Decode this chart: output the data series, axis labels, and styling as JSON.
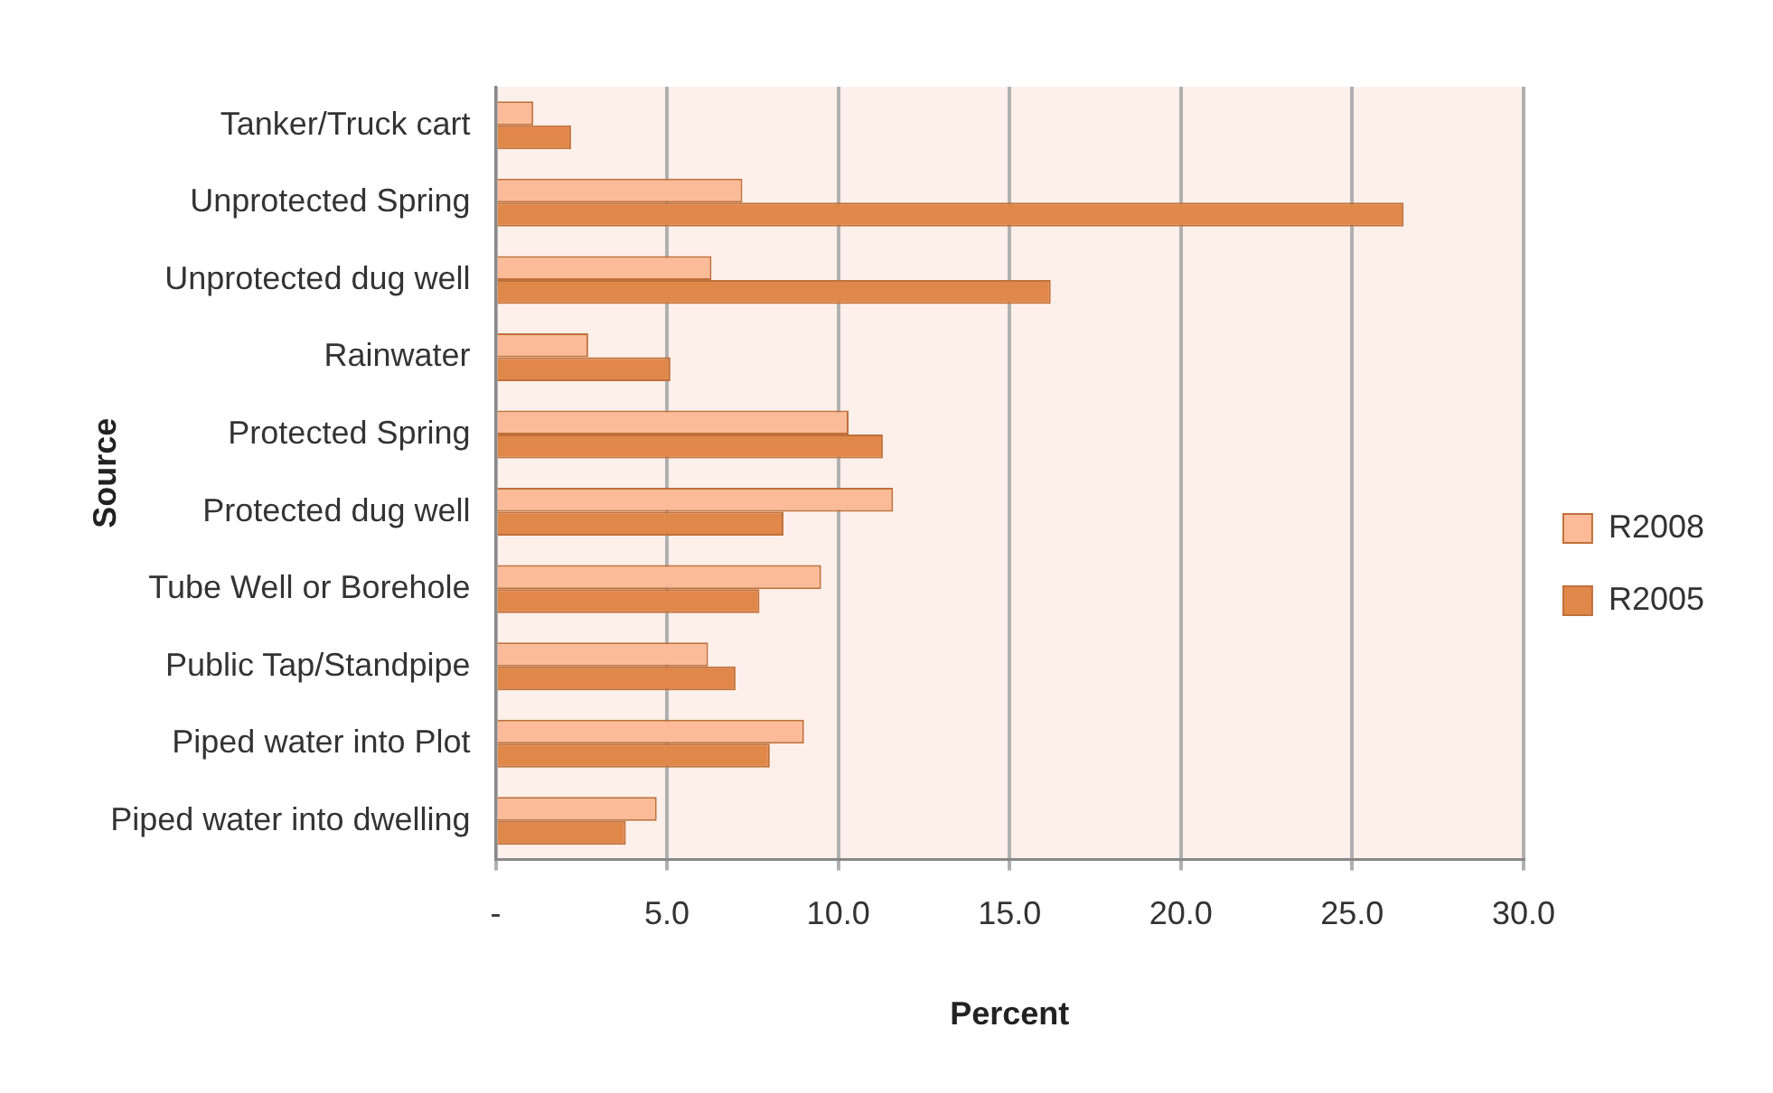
{
  "chart_data": {
    "type": "bar",
    "orientation": "horizontal",
    "xlabel": "Percent",
    "ylabel": "Source",
    "categories": [
      "Tanker/Truck cart",
      "Unprotected Spring",
      "Unprotected dug well",
      "Rainwater",
      "Protected Spring",
      "Protected dug well",
      "Tube Well or Borehole",
      "Public Tap/Standpipe",
      "Piped water into Plot",
      "Piped water into dwelling"
    ],
    "series": [
      {
        "name": "R2008",
        "color": "#fbbb98",
        "values": [
          1.1,
          7.2,
          6.3,
          2.7,
          10.3,
          11.6,
          9.5,
          6.2,
          9.0,
          4.7
        ]
      },
      {
        "name": "R2005",
        "color": "#e0874a",
        "values": [
          2.2,
          26.5,
          16.2,
          5.1,
          11.3,
          8.4,
          7.7,
          7.0,
          8.0,
          3.8
        ]
      }
    ],
    "xlim": [
      0,
      30
    ],
    "xticks": [
      {
        "value": 0,
        "label": "-"
      },
      {
        "value": 5,
        "label": "5.0"
      },
      {
        "value": 10,
        "label": "10.0"
      },
      {
        "value": 15,
        "label": "15.0"
      },
      {
        "value": 20,
        "label": "20.0"
      },
      {
        "value": 25,
        "label": "25.0"
      },
      {
        "value": 30,
        "label": "30.0"
      }
    ],
    "grid": "x",
    "legend": "right"
  }
}
